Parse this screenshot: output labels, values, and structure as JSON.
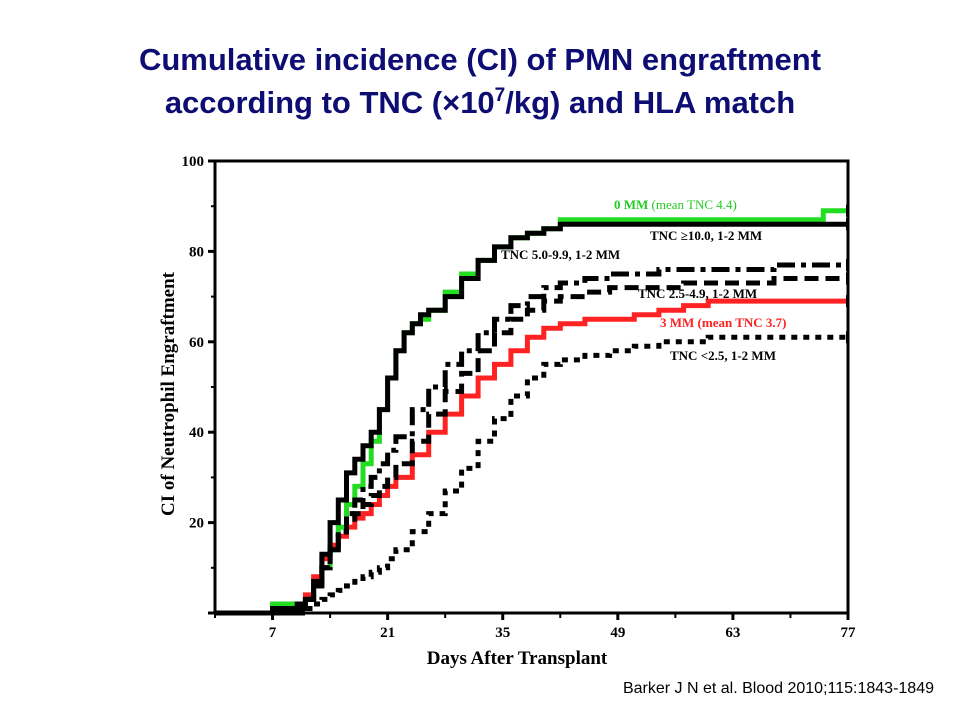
{
  "slide": {
    "title_line1": "Cumulative incidence (CI) of PMN engraftment",
    "title_line2_a": "according to TNC (×10",
    "title_line2_sup": "7",
    "title_line2_b": "/kg) and HLA match",
    "citation": "Barker J N et al. Blood 2010;115:1843-1849"
  },
  "chart_data": {
    "type": "line",
    "title": "",
    "xlabel": "Days After Transplant",
    "ylabel": "CI of Neutrophil Engraftment",
    "xlim": [
      0,
      77
    ],
    "ylim": [
      0,
      100
    ],
    "xticks": [
      7,
      21,
      35,
      49,
      63,
      77
    ],
    "yticks": [
      20,
      40,
      60,
      80,
      100
    ],
    "grid": false,
    "legend": "none (series labeled directly on plot)",
    "series": [
      {
        "name": "0 MM (mean TNC 4.4)",
        "label_parts": [
          "0 MM",
          " (mean TNC 4.4)"
        ],
        "color": "#22dd22",
        "dash": "solid",
        "x": [
          0,
          7,
          10,
          11,
          12,
          13,
          14,
          15,
          16,
          17,
          18,
          19,
          20,
          21,
          22,
          23,
          24,
          25,
          26,
          28,
          30,
          32,
          34,
          36,
          38,
          40,
          42,
          45,
          50,
          55,
          60,
          65,
          70,
          74,
          77
        ],
        "y": [
          0,
          2,
          2,
          3,
          6,
          10,
          14,
          19,
          24,
          28,
          33,
          38,
          45,
          52,
          58,
          62,
          64,
          65,
          67,
          71,
          75,
          78,
          81,
          83,
          84,
          85,
          87,
          87,
          87,
          87,
          87,
          87,
          87,
          89,
          89
        ]
      },
      {
        "name": "TNC ≥10.0, 1-2 MM",
        "label_parts": [
          "TNC ≥10.0, 1-2 MM"
        ],
        "color": "#000000",
        "dash": "solid",
        "x": [
          0,
          7,
          10,
          11,
          12,
          13,
          14,
          15,
          16,
          17,
          18,
          19,
          20,
          21,
          22,
          23,
          24,
          25,
          26,
          28,
          30,
          32,
          34,
          36,
          38,
          40,
          42,
          45,
          50,
          55,
          60,
          65,
          70,
          74,
          77
        ],
        "y": [
          0,
          1,
          2,
          3,
          7,
          13,
          20,
          25,
          31,
          34,
          37,
          40,
          45,
          52,
          58,
          62,
          64,
          66,
          67,
          70,
          74,
          78,
          81,
          83,
          84,
          85,
          86,
          86,
          86,
          86,
          86,
          86,
          86,
          86,
          86
        ]
      },
      {
        "name": "TNC 5.0-9.9, 1-2 MM",
        "label_parts": [
          "TNC 5.0-9.9, 1-2 MM"
        ],
        "color": "#000000",
        "dash": "dashdot",
        "x": [
          0,
          7,
          10,
          11,
          12,
          13,
          14,
          15,
          16,
          17,
          18,
          19,
          20,
          21,
          22,
          24,
          26,
          28,
          30,
          32,
          34,
          36,
          38,
          40,
          42,
          45,
          48,
          51,
          54,
          57,
          60,
          64,
          68,
          72,
          77
        ],
        "y": [
          0,
          0,
          1,
          3,
          6,
          10,
          14,
          18,
          22,
          25,
          28,
          30,
          33,
          36,
          39,
          45,
          50,
          55,
          58,
          62,
          65,
          68,
          70,
          72,
          73,
          74,
          75,
          75,
          76,
          76,
          76,
          76,
          77,
          77,
          77
        ]
      },
      {
        "name": "TNC 2.5-4.9, 1-2 MM",
        "label_parts": [
          "TNC 2.5-4.9, 1-2 MM"
        ],
        "color": "#000000",
        "dash": "dashed",
        "x": [
          0,
          7,
          10,
          11,
          12,
          13,
          14,
          15,
          16,
          17,
          18,
          19,
          20,
          21,
          22,
          24,
          26,
          28,
          30,
          32,
          34,
          36,
          38,
          40,
          42,
          45,
          48,
          51,
          54,
          57,
          60,
          64,
          68,
          72,
          77
        ],
        "y": [
          0,
          0,
          1,
          3,
          6,
          10,
          14,
          17,
          20,
          22,
          24,
          26,
          28,
          30,
          33,
          38,
          44,
          49,
          53,
          58,
          62,
          65,
          67,
          69,
          70,
          71,
          72,
          72,
          72,
          73,
          73,
          73,
          74,
          74,
          74
        ]
      },
      {
        "name": "3 MM (mean TNC 3.7)",
        "label_parts": [
          "3 MM (mean TNC 3.7)"
        ],
        "color": "#ff2222",
        "dash": "solid",
        "x": [
          0,
          7,
          10,
          11,
          12,
          13,
          14,
          15,
          16,
          17,
          18,
          19,
          20,
          21,
          22,
          24,
          26,
          28,
          30,
          32,
          34,
          36,
          38,
          40,
          42,
          45,
          48,
          51,
          54,
          57,
          60,
          64,
          68,
          72,
          77
        ],
        "y": [
          0,
          0,
          1,
          4,
          8,
          12,
          15,
          17,
          19,
          21,
          22,
          24,
          26,
          28,
          30,
          35,
          40,
          44,
          48,
          52,
          55,
          58,
          61,
          63,
          64,
          65,
          65,
          66,
          67,
          68,
          69,
          69,
          69,
          69,
          69
        ]
      },
      {
        "name": "TNC <2.5, 1-2 MM",
        "label_parts": [
          "TNC <2.5, 1-2 MM"
        ],
        "color": "#000000",
        "dash": "dotted",
        "x": [
          0,
          7,
          10,
          11,
          12,
          13,
          14,
          15,
          16,
          17,
          18,
          19,
          20,
          21,
          22,
          24,
          26,
          28,
          30,
          32,
          34,
          36,
          38,
          40,
          42,
          45,
          48,
          51,
          54,
          57,
          60,
          64,
          68,
          72,
          77
        ],
        "y": [
          0,
          0,
          0,
          1,
          2,
          3,
          4,
          5,
          6,
          7,
          8,
          9,
          10,
          12,
          14,
          18,
          22,
          27,
          32,
          38,
          43,
          48,
          52,
          55,
          56,
          57,
          58,
          59,
          60,
          60,
          61,
          61,
          61,
          61,
          61
        ]
      }
    ]
  }
}
